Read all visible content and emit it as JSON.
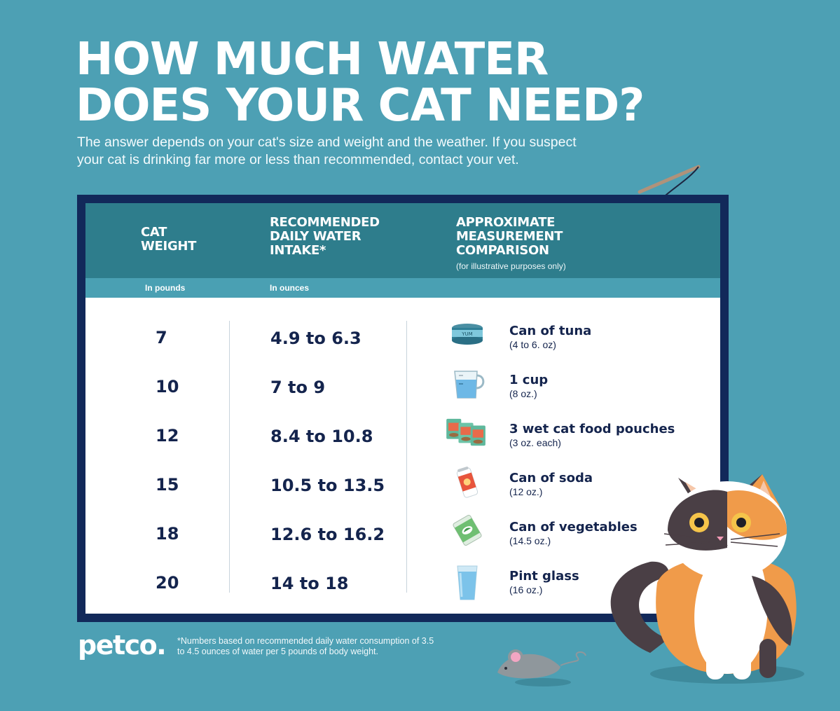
{
  "title": {
    "line1": "HOW MUCH WATER",
    "line2": "DOES YOUR CAT NEED?"
  },
  "subtitle": {
    "line1": "The answer depends on your cat's size and weight and the weather. If you suspect",
    "line2": "your cat is drinking far more or less than recommended, contact your vet."
  },
  "table": {
    "headers": {
      "weight": [
        "CAT",
        "WEIGHT"
      ],
      "intake": [
        "RECOMMENDED",
        "DAILY WATER",
        "INTAKE*"
      ],
      "measure": [
        "APPROXIMATE",
        "MEASUREMENT",
        "COMPARISON"
      ],
      "measure_note": "(for illustrative purposes only)"
    },
    "subheaders": {
      "weight": "In pounds",
      "intake": "In ounces"
    },
    "rows": [
      {
        "weight": "7",
        "intake": "4.9 to 6.3",
        "comparison": "Can of tuna",
        "comparison_detail": "(4 to 6. oz)",
        "icon": "tuna-can-icon"
      },
      {
        "weight": "10",
        "intake": "7 to 9",
        "comparison": "1 cup",
        "comparison_detail": "(8 oz.)",
        "icon": "measuring-cup-icon"
      },
      {
        "weight": "12",
        "intake": "8.4 to 10.8",
        "comparison": "3 wet cat food pouches",
        "comparison_detail": "(3 oz. each)",
        "icon": "food-pouches-icon"
      },
      {
        "weight": "15",
        "intake": "10.5 to 13.5",
        "comparison": "Can of soda",
        "comparison_detail": "(12 oz.)",
        "icon": "soda-can-icon"
      },
      {
        "weight": "18",
        "intake": "12.6 to 16.2",
        "comparison": "Can of vegetables",
        "comparison_detail": "(14.5 oz.)",
        "icon": "vegetable-can-icon"
      },
      {
        "weight": "20",
        "intake": "14 to 18",
        "comparison": "Pint glass",
        "comparison_detail": "(16 oz.)",
        "icon": "pint-glass-icon"
      }
    ],
    "tuna_label": "YUM"
  },
  "brand": {
    "logo": "petco."
  },
  "footnote": {
    "line1": "*Numbers based on recommended daily water consumption of 3.5",
    "line2": "to 4.5 ounces of water per 5 pounds of body weight."
  },
  "colors": {
    "background": "#4da0b4",
    "header": "#2e7d8c",
    "frame": "#12295a",
    "text_dark": "#14244d"
  }
}
